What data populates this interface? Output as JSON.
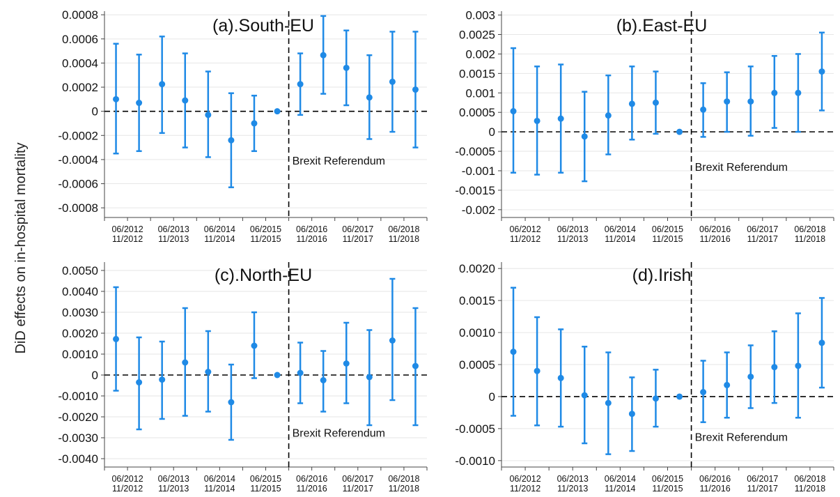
{
  "figure": {
    "ylabel": "DiD effects on in-hospital mortality",
    "annotation": "Brexit Referendum",
    "marker_color": "#1f8ae6",
    "grid_color": "#e6e6e6",
    "zero_line_color": "#000000",
    "axis_color": "#444444"
  },
  "chart_data": [
    {
      "type": "scatter",
      "title": "(a).South-EU",
      "ylim": [
        -0.00088,
        0.00083
      ],
      "yticks": [
        -0.0008,
        -0.0006,
        -0.0004,
        -0.0002,
        0,
        0.0002,
        0.0004,
        0.0006,
        0.0008
      ],
      "ytick_labels": [
        "-0.0008",
        "-0.0006",
        "-0.0004",
        "-0.0002",
        "0",
        "0.0002",
        "0.0004",
        "0.0006",
        "0.0008"
      ],
      "categories": [
        "06/2012",
        "11/2012",
        "06/2013",
        "11/2013",
        "06/2014",
        "11/2014",
        "06/2015",
        "11/2015",
        "06/2016",
        "11/2016",
        "06/2017",
        "11/2017",
        "06/2018",
        "11/2018"
      ],
      "estimate": [
        0.0001,
        7e-05,
        0.000225,
        9e-05,
        -3e-05,
        -0.00024,
        -0.0001,
        0,
        0.000225,
        0.000465,
        0.00036,
        0.000115,
        0.000245,
        0.00018
      ],
      "lower": [
        -0.00035,
        -0.00033,
        -0.00018,
        -0.0003,
        -0.00038,
        -0.00063,
        -0.00033,
        0,
        -3e-05,
        0.000145,
        5e-05,
        -0.00023,
        -0.00017,
        -0.0003
      ],
      "upper": [
        0.00056,
        0.00047,
        0.00062,
        0.00048,
        0.00033,
        0.00015,
        0.00013,
        0,
        0.00048,
        0.00079,
        0.00067,
        0.000465,
        0.00066,
        0.00066
      ],
      "referendum_annotation_y": -0.00044,
      "grid": true
    },
    {
      "type": "scatter",
      "title": "(b).East-EU",
      "ylim": [
        -0.0022,
        0.0031
      ],
      "yticks": [
        -0.002,
        -0.0015,
        -0.001,
        -0.0005,
        0,
        0.0005,
        0.001,
        0.0015,
        0.002,
        0.0025,
        0.003
      ],
      "ytick_labels": [
        "-0.002",
        "-0.0015",
        "-0.001",
        "-0.0005",
        "0",
        "0.0005",
        "0.001",
        "0.0015",
        "0.002",
        "0.0025",
        "0.003"
      ],
      "categories": [
        "06/2012",
        "11/2012",
        "06/2013",
        "11/2013",
        "06/2014",
        "11/2014",
        "06/2015",
        "11/2015",
        "06/2016",
        "11/2016",
        "06/2017",
        "11/2017",
        "06/2018",
        "11/2018"
      ],
      "estimate": [
        0.00053,
        0.00028,
        0.00034,
        -0.00012,
        0.00042,
        0.00072,
        0.00075,
        0,
        0.00057,
        0.00078,
        0.00078,
        0.001,
        0.001,
        0.00155
      ],
      "lower": [
        -0.00105,
        -0.0011,
        -0.00105,
        -0.00127,
        -0.00058,
        -0.0002,
        -5e-05,
        0,
        -0.00013,
        0,
        -0.0001,
        0.0001,
        0,
        0.00055
      ],
      "upper": [
        0.00215,
        0.00168,
        0.00173,
        0.00103,
        0.00145,
        0.00168,
        0.00155,
        0,
        0.00125,
        0.00153,
        0.00168,
        0.00195,
        0.002,
        0.00255
      ],
      "referendum_annotation_y": -0.001,
      "grid": true
    },
    {
      "type": "scatter",
      "title": "(c).North-EU",
      "ylim": [
        -0.0044,
        0.0054
      ],
      "yticks": [
        -0.004,
        -0.003,
        -0.002,
        -0.001,
        0,
        0.001,
        0.002,
        0.003,
        0.004,
        0.005
      ],
      "ytick_labels": [
        "-0.0040",
        "-0.0030",
        "-0.0020",
        "-0.0010",
        "0",
        "0.0010",
        "0.0020",
        "0.0030",
        "0.0040",
        "0.0050"
      ],
      "categories": [
        "06/2012",
        "11/2012",
        "06/2013",
        "11/2013",
        "06/2014",
        "11/2014",
        "06/2015",
        "11/2015",
        "06/2016",
        "11/2016",
        "06/2017",
        "11/2017",
        "06/2018",
        "11/2018"
      ],
      "estimate": [
        0.00172,
        -0.00035,
        -0.00022,
        0.0006,
        0.00015,
        -0.0013,
        0.0014,
        0,
        0.0001,
        -0.00025,
        0.00055,
        -0.0001,
        0.00165,
        0.00043
      ],
      "lower": [
        -0.00075,
        -0.0026,
        -0.0021,
        -0.00195,
        -0.00175,
        -0.0031,
        -0.00015,
        0,
        -0.00135,
        -0.00175,
        -0.00135,
        -0.0024,
        -0.0012,
        -0.0024
      ],
      "upper": [
        0.0042,
        0.0018,
        0.0016,
        0.0032,
        0.0021,
        0.0005,
        0.003,
        0,
        0.00155,
        0.00115,
        0.0025,
        0.00215,
        0.0046,
        0.0032
      ],
      "referendum_annotation_y": -0.00295,
      "grid": true
    },
    {
      "type": "scatter",
      "title": "(d).Irish",
      "ylim": [
        -0.0011,
        0.0021
      ],
      "yticks": [
        -0.001,
        -0.0005,
        0,
        0.0005,
        0.001,
        0.0015,
        0.002
      ],
      "ytick_labels": [
        "-0.0010",
        "-0.0005",
        "0",
        "0.0005",
        "0.0010",
        "0.0015",
        "0.0020"
      ],
      "categories": [
        "06/2012",
        "11/2012",
        "06/2013",
        "11/2013",
        "06/2014",
        "11/2014",
        "06/2015",
        "11/2015",
        "06/2016",
        "11/2016",
        "06/2017",
        "11/2017",
        "06/2018",
        "11/2018"
      ],
      "estimate": [
        0.0007,
        0.0004,
        0.00029,
        2e-05,
        -0.0001,
        -0.00027,
        -3e-05,
        0,
        7e-05,
        0.00018,
        0.00031,
        0.00046,
        0.00048,
        0.00084
      ],
      "lower": [
        -0.0003,
        -0.00045,
        -0.00047,
        -0.00073,
        -0.0009,
        -0.00085,
        -0.00047,
        0,
        -0.0004,
        -0.00033,
        -0.00018,
        -0.0001,
        -0.00033,
        0.00014
      ],
      "upper": [
        0.0017,
        0.00124,
        0.00105,
        0.00078,
        0.00069,
        0.0003,
        0.00042,
        0,
        0.00056,
        0.00069,
        0.0008,
        0.00102,
        0.0013,
        0.00154
      ],
      "referendum_annotation_y": -0.00069,
      "grid": true
    }
  ]
}
